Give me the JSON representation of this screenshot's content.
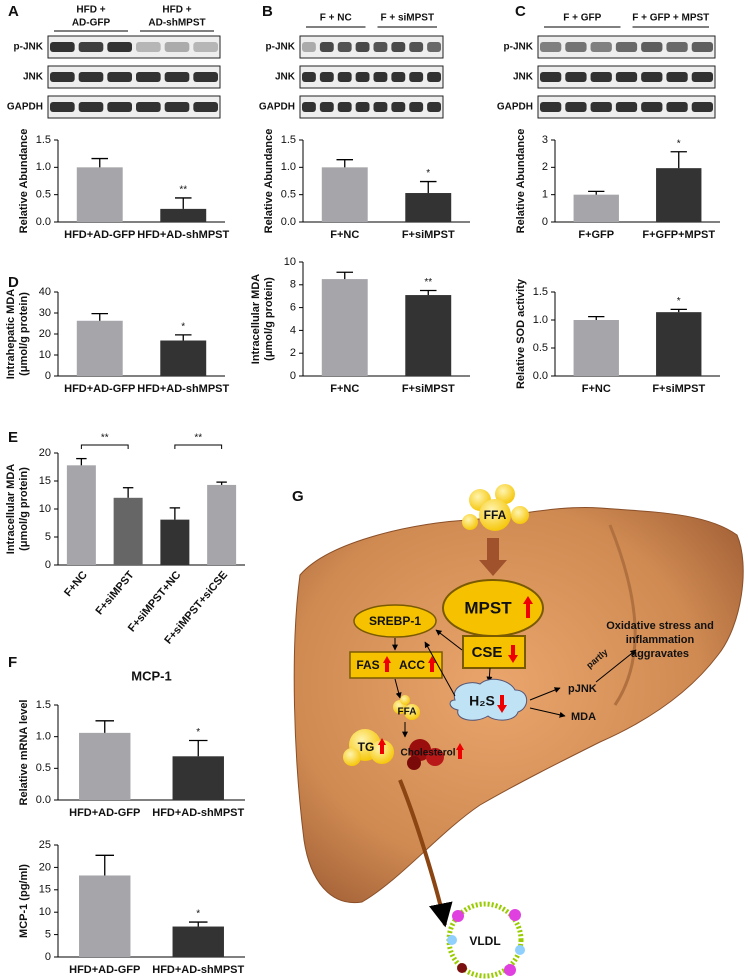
{
  "chart_data": [
    {
      "type": "bar",
      "ylabel": [
        "Relative Abundance"
      ],
      "categories": [
        "HFD+AD-GFP",
        "HFD+AD-shMPST"
      ],
      "values": [
        1.0,
        0.24
      ],
      "errors": [
        0.16,
        0.2
      ],
      "colors": [
        "#a6a6aa",
        "#333333"
      ],
      "significance": [
        null,
        "**"
      ],
      "ylim": [
        0,
        1.5
      ],
      "yticks": [
        {
          "value": 0,
          "label": "0.0"
        },
        {
          "value": 0.5,
          "label": "0.5"
        },
        {
          "value": 1,
          "label": "1.0"
        },
        {
          "value": 1.5,
          "label": "1.5"
        }
      ]
    },
    {
      "type": "bar",
      "ylabel": [
        "Relative Abundance"
      ],
      "categories": [
        "F+NC",
        "F+siMPST"
      ],
      "values": [
        1.0,
        0.53
      ],
      "errors": [
        0.14,
        0.21
      ],
      "colors": [
        "#a6a6aa",
        "#333333"
      ],
      "significance": [
        null,
        "*"
      ],
      "ylim": [
        0,
        1.5
      ],
      "yticks": [
        {
          "value": 0,
          "label": "0.0"
        },
        {
          "value": 0.5,
          "label": "0.5"
        },
        {
          "value": 1,
          "label": "1.0"
        },
        {
          "value": 1.5,
          "label": "1.5"
        }
      ]
    },
    {
      "type": "bar",
      "ylabel": [
        "Relative Abundance"
      ],
      "categories": [
        "F+GFP",
        "F+GFP+MPST"
      ],
      "values": [
        1.0,
        1.97
      ],
      "errors": [
        0.12,
        0.6
      ],
      "colors": [
        "#a6a6aa",
        "#333333"
      ],
      "significance": [
        null,
        "*"
      ],
      "ylim": [
        0,
        3
      ],
      "yticks": [
        0,
        1,
        2,
        3
      ]
    },
    {
      "type": "bar",
      "panel": "D",
      "ylabel": [
        "Intrahepatic MDA",
        "(μmol/g protein)"
      ],
      "categories": [
        "HFD+AD-GFP",
        "HFD+AD-shMPST"
      ],
      "values": [
        26.3,
        16.9
      ],
      "errors": [
        3.4,
        2.7
      ],
      "colors": [
        "#a6a6aa",
        "#333333"
      ],
      "significance": [
        null,
        "*"
      ],
      "ylim": [
        0,
        40
      ],
      "yticks": [
        0,
        10,
        20,
        30,
        40
      ]
    },
    {
      "type": "bar",
      "ylabel": [
        "Intracellular MDA",
        "(μmol/g protein)"
      ],
      "categories": [
        "F+NC",
        "F+siMPST"
      ],
      "values": [
        8.5,
        7.1
      ],
      "errors": [
        0.6,
        0.4
      ],
      "colors": [
        "#a6a6aa",
        "#333333"
      ],
      "significance": [
        null,
        "**"
      ],
      "ylim": [
        0,
        10
      ],
      "yticks": [
        0,
        2,
        4,
        6,
        8,
        10
      ]
    },
    {
      "type": "bar",
      "ylabel": [
        "Relative SOD activity"
      ],
      "categories": [
        "F+NC",
        "F+siMPST"
      ],
      "values": [
        1.0,
        1.14
      ],
      "errors": [
        0.06,
        0.05
      ],
      "colors": [
        "#a6a6aa",
        "#333333"
      ],
      "significance": [
        null,
        "*"
      ],
      "ylim": [
        0,
        1.5
      ],
      "yticks": [
        {
          "value": 0,
          "label": "0.0"
        },
        {
          "value": 0.5,
          "label": "0.5"
        },
        {
          "value": 1,
          "label": "1.0"
        },
        {
          "value": 1.5,
          "label": "1.5"
        }
      ]
    },
    {
      "type": "bar",
      "panel": "E",
      "ylabel": [
        "Intracellular MDA",
        "(μmol/g protein)"
      ],
      "categories": [
        "F+NC",
        "F+siMPST",
        "F+siMPST+NC",
        "F+siMPST+siCSE"
      ],
      "values": [
        17.8,
        12.0,
        8.1,
        14.3
      ],
      "errors": [
        1.2,
        1.8,
        2.1,
        0.5
      ],
      "colors": [
        "#a6a6aa",
        "#666666",
        "#333333",
        "#a6a6aa"
      ],
      "comparisons": [
        {
          "between": [
            "F+NC",
            "F+siMPST"
          ],
          "label": "**"
        },
        {
          "between": [
            "F+siMPST+NC",
            "F+siMPST+siCSE"
          ],
          "label": "**"
        }
      ],
      "ylim": [
        0,
        20
      ],
      "yticks": [
        0,
        5,
        10,
        15,
        20
      ]
    },
    {
      "type": "bar",
      "panel": "F",
      "title": "MCP-1",
      "ylabel": [
        "Relative mRNA level"
      ],
      "categories": [
        "HFD+AD-GFP",
        "HFD+AD-shMPST"
      ],
      "values": [
        1.06,
        0.69
      ],
      "errors": [
        0.19,
        0.25
      ],
      "colors": [
        "#a6a6aa",
        "#333333"
      ],
      "significance": [
        null,
        "*"
      ],
      "ylim": [
        0,
        1.5
      ],
      "yticks": [
        {
          "value": 0,
          "label": "0.0"
        },
        {
          "value": 0.5,
          "label": "0.5"
        },
        {
          "value": 1,
          "label": "1.0"
        },
        {
          "value": 1.5,
          "label": "1.5"
        }
      ]
    },
    {
      "type": "bar",
      "ylabel": [
        "MCP-1 (pg/ml)"
      ],
      "categories": [
        "HFD+AD-GFP",
        "HFD+AD-shMPST"
      ],
      "values": [
        18.2,
        6.8
      ],
      "errors": [
        4.5,
        1.0
      ],
      "colors": [
        "#a6a6aa",
        "#333333"
      ],
      "significance": [
        null,
        "*"
      ],
      "ylim": [
        0,
        25
      ],
      "yticks": [
        0,
        5,
        10,
        15,
        20,
        25
      ]
    }
  ],
  "blots": [
    {
      "panel": "A",
      "groups": [
        [
          "HFD +",
          "AD-GFP"
        ],
        [
          "HFD +",
          "AD-shMPST"
        ]
      ],
      "rows": [
        "p-JNK",
        "JNK",
        "GAPDH"
      ]
    },
    {
      "panel": "B",
      "groups": [
        [
          "F + NC"
        ],
        [
          "F + siMPST"
        ]
      ],
      "rows": [
        "p-JNK",
        "JNK",
        "GAPDH"
      ]
    },
    {
      "panel": "C",
      "groups": [
        [
          "F + GFP"
        ],
        [
          "F + GFP + MPST"
        ]
      ],
      "rows": [
        "p-JNK",
        "JNK",
        "GAPDH"
      ]
    }
  ],
  "diagram": {
    "panel": "G",
    "ffa_in": "FFA",
    "mpst": "MPST",
    "cse": "CSE",
    "srebp": "SREBP-1",
    "fas": "FAS",
    "acc": "ACC",
    "ffa": "FFA",
    "tg": "TG",
    "cholesterol": "Cholesterol",
    "h2s": "H₂S",
    "pjnk": "pJNK",
    "partly": "partly",
    "mda": "MDA",
    "outcome": [
      "Oxidative stress and",
      "inflammation",
      "aggravates"
    ],
    "vldl": "VLDL"
  }
}
